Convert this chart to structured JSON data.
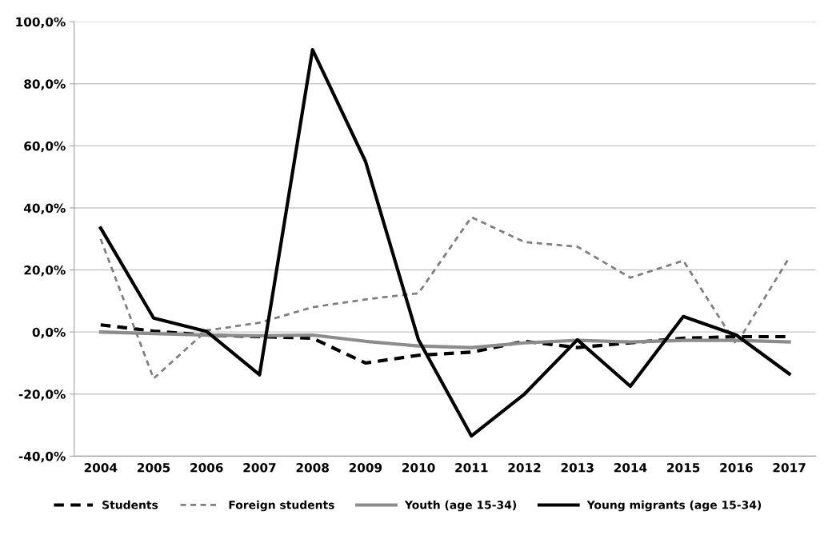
{
  "chart_data": {
    "type": "line",
    "categories": [
      "2004",
      "2005",
      "2006",
      "2007",
      "2008",
      "2009",
      "2010",
      "2011",
      "2012",
      "2013",
      "2014",
      "2015",
      "2016",
      "2017"
    ],
    "series": [
      {
        "name": "Students",
        "color": "#000000",
        "line_style": "dashed",
        "values": [
          2.3,
          0.3,
          -1,
          -1.5,
          -2,
          -10,
          -7.5,
          -6.5,
          -3,
          -5,
          -3.5,
          -2,
          -1.5,
          -1.5
        ]
      },
      {
        "name": "Foreign students",
        "color": "#808080",
        "line_style": "dashed",
        "values": [
          30,
          -15,
          0.5,
          3,
          8,
          10.5,
          12.5,
          37,
          29,
          27.5,
          17.5,
          23,
          -4,
          24
        ]
      },
      {
        "name": "Youth (age 15-34)",
        "color": "#8c8c8c",
        "line_style": "solid",
        "values": [
          0,
          -0.5,
          -1,
          -1.2,
          -1,
          -3,
          -4.5,
          -5,
          -3.5,
          -2.7,
          -3.2,
          -2.7,
          -2.7,
          -3.2
        ]
      },
      {
        "name": "Young migrants (age 15-34)",
        "color": "#000000",
        "line_style": "solid",
        "values": [
          33.5,
          4.5,
          0.2,
          -13.8,
          91,
          55,
          -2.5,
          -33.5,
          -20,
          -2.5,
          -17.5,
          5,
          -1,
          -13.5
        ]
      }
    ],
    "ylim": [
      -40,
      100
    ],
    "yticks": [
      {
        "value": -40,
        "label": "-40,0%"
      },
      {
        "value": -20,
        "label": "-20,0%"
      },
      {
        "value": 0,
        "label": "0,0%"
      },
      {
        "value": 20,
        "label": "20,0%"
      },
      {
        "value": 40,
        "label": "40,0%"
      },
      {
        "value": 60,
        "label": "60,0%"
      },
      {
        "value": 80,
        "label": "80,0%"
      },
      {
        "value": 100,
        "label": "100,0%"
      }
    ],
    "grid": "y",
    "legend": "bottom",
    "marker": "none"
  }
}
